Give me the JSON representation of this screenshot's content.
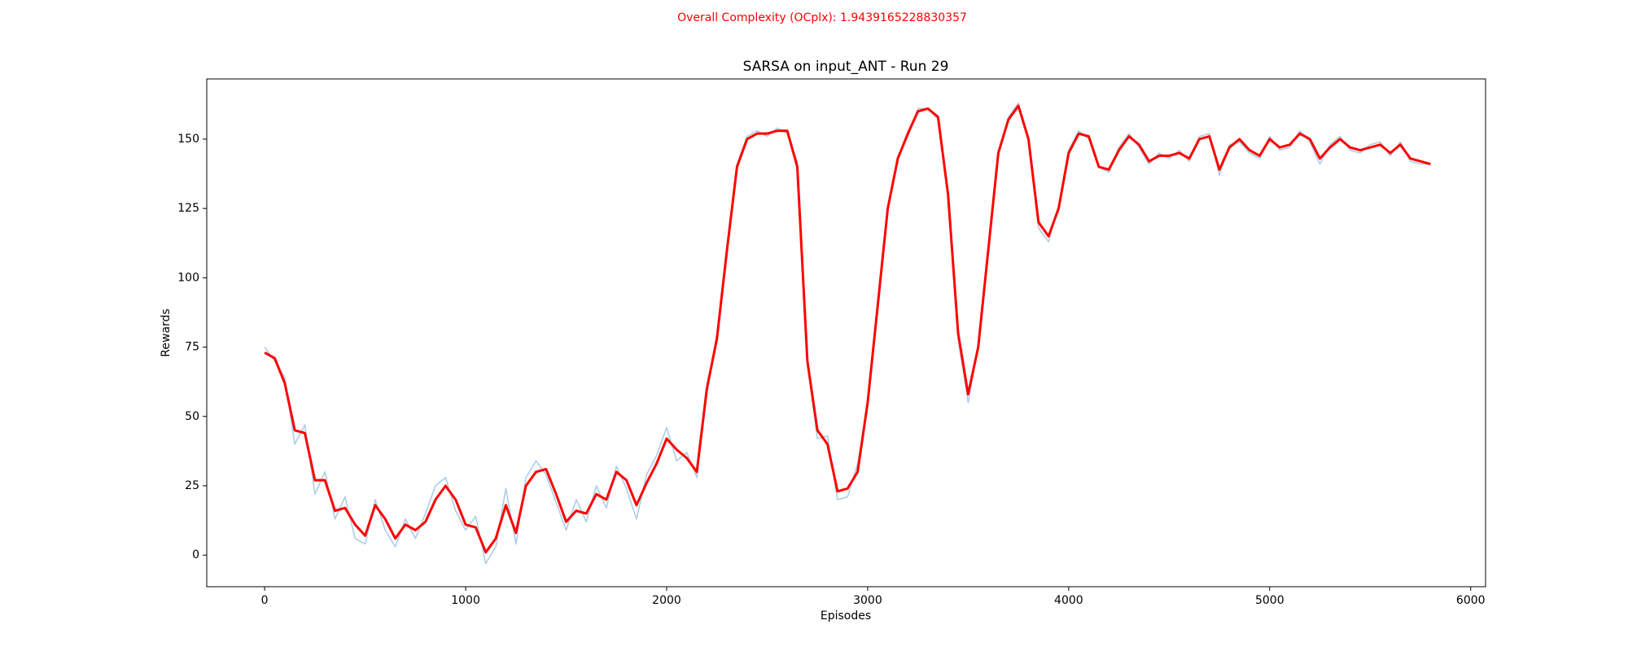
{
  "chart_data": {
    "type": "line",
    "suptitle": "Overall Complexity (OCplx): 1.9439165228830357",
    "title": "SARSA on input_ANT - Run 29",
    "xlabel": "Episodes",
    "ylabel": "Rewards",
    "x": [
      0,
      50,
      100,
      150,
      200,
      250,
      300,
      350,
      400,
      450,
      500,
      550,
      600,
      650,
      700,
      750,
      800,
      850,
      900,
      950,
      1000,
      1050,
      1100,
      1150,
      1200,
      1250,
      1300,
      1350,
      1400,
      1450,
      1500,
      1550,
      1600,
      1650,
      1700,
      1750,
      1800,
      1850,
      1900,
      1950,
      2000,
      2050,
      2100,
      2150,
      2200,
      2250,
      2300,
      2350,
      2400,
      2450,
      2500,
      2550,
      2600,
      2650,
      2700,
      2750,
      2800,
      2850,
      2900,
      2950,
      3000,
      3050,
      3100,
      3150,
      3200,
      3250,
      3300,
      3350,
      3400,
      3450,
      3500,
      3550,
      3600,
      3650,
      3700,
      3750,
      3800,
      3850,
      3900,
      3950,
      4000,
      4050,
      4100,
      4150,
      4200,
      4250,
      4300,
      4350,
      4400,
      4450,
      4500,
      4550,
      4600,
      4650,
      4700,
      4750,
      4800,
      4850,
      4900,
      4950,
      5000,
      5050,
      5100,
      5150,
      5200,
      5250,
      5300,
      5350,
      5400,
      5450,
      5500,
      5550,
      5600,
      5650,
      5700,
      5750,
      5800
    ],
    "series": [
      {
        "color": "#aecde6",
        "values": [
          75,
          70,
          64,
          40,
          47,
          22,
          30,
          13,
          21,
          6,
          4,
          20,
          9,
          3,
          13,
          6,
          15,
          25,
          28,
          16,
          9,
          14,
          -3,
          3,
          24,
          4,
          28,
          34,
          29,
          19,
          9,
          20,
          12,
          25,
          17,
          32,
          24,
          13,
          29,
          36,
          46,
          34,
          37,
          28,
          58,
          80,
          108,
          141,
          151,
          153,
          151,
          154,
          152,
          142,
          69,
          42,
          43,
          20,
          21,
          33,
          53,
          91,
          124,
          144,
          151,
          161,
          161,
          157,
          131,
          78,
          55,
          76,
          111,
          144,
          158,
          163,
          149,
          118,
          113,
          126,
          146,
          153,
          150,
          140,
          138,
          147,
          152,
          147,
          141,
          145,
          143,
          146,
          142,
          151,
          152,
          137,
          148,
          149,
          145,
          143,
          151,
          146,
          147,
          153,
          149,
          141,
          148,
          151,
          146,
          145,
          148,
          149,
          144,
          149,
          142,
          141,
          141
        ]
      },
      {
        "color": "#ff0000",
        "values": [
          73,
          71,
          62,
          45,
          44,
          27,
          27,
          16,
          17,
          11,
          7,
          18,
          13,
          6,
          11,
          9,
          12,
          20,
          25,
          20,
          11,
          10,
          1,
          6,
          18,
          8,
          25,
          30,
          31,
          22,
          12,
          16,
          15,
          22,
          20,
          30,
          27,
          18,
          26,
          33,
          42,
          38,
          35,
          30,
          60,
          78,
          110,
          140,
          150,
          152,
          152,
          153,
          153,
          140,
          70,
          45,
          40,
          23,
          24,
          30,
          55,
          90,
          125,
          143,
          152,
          160,
          161,
          158,
          130,
          80,
          58,
          75,
          110,
          145,
          157,
          162,
          150,
          120,
          115,
          125,
          145,
          152,
          151,
          140,
          139,
          146,
          151,
          148,
          142,
          144,
          144,
          145,
          143,
          150,
          151,
          139,
          147,
          150,
          146,
          144,
          150,
          147,
          148,
          152,
          150,
          143,
          147,
          150,
          147,
          146,
          147,
          148,
          145,
          148,
          143,
          142,
          141
        ]
      }
    ],
    "xlim": [
      -288,
      6074
    ],
    "xticks": [
      0,
      1000,
      2000,
      3000,
      4000,
      5000,
      6000
    ],
    "ylim": [
      -11.4,
      171.7
    ],
    "yticks": [
      0,
      25,
      50,
      75,
      100,
      125,
      150
    ],
    "grid": false
  }
}
